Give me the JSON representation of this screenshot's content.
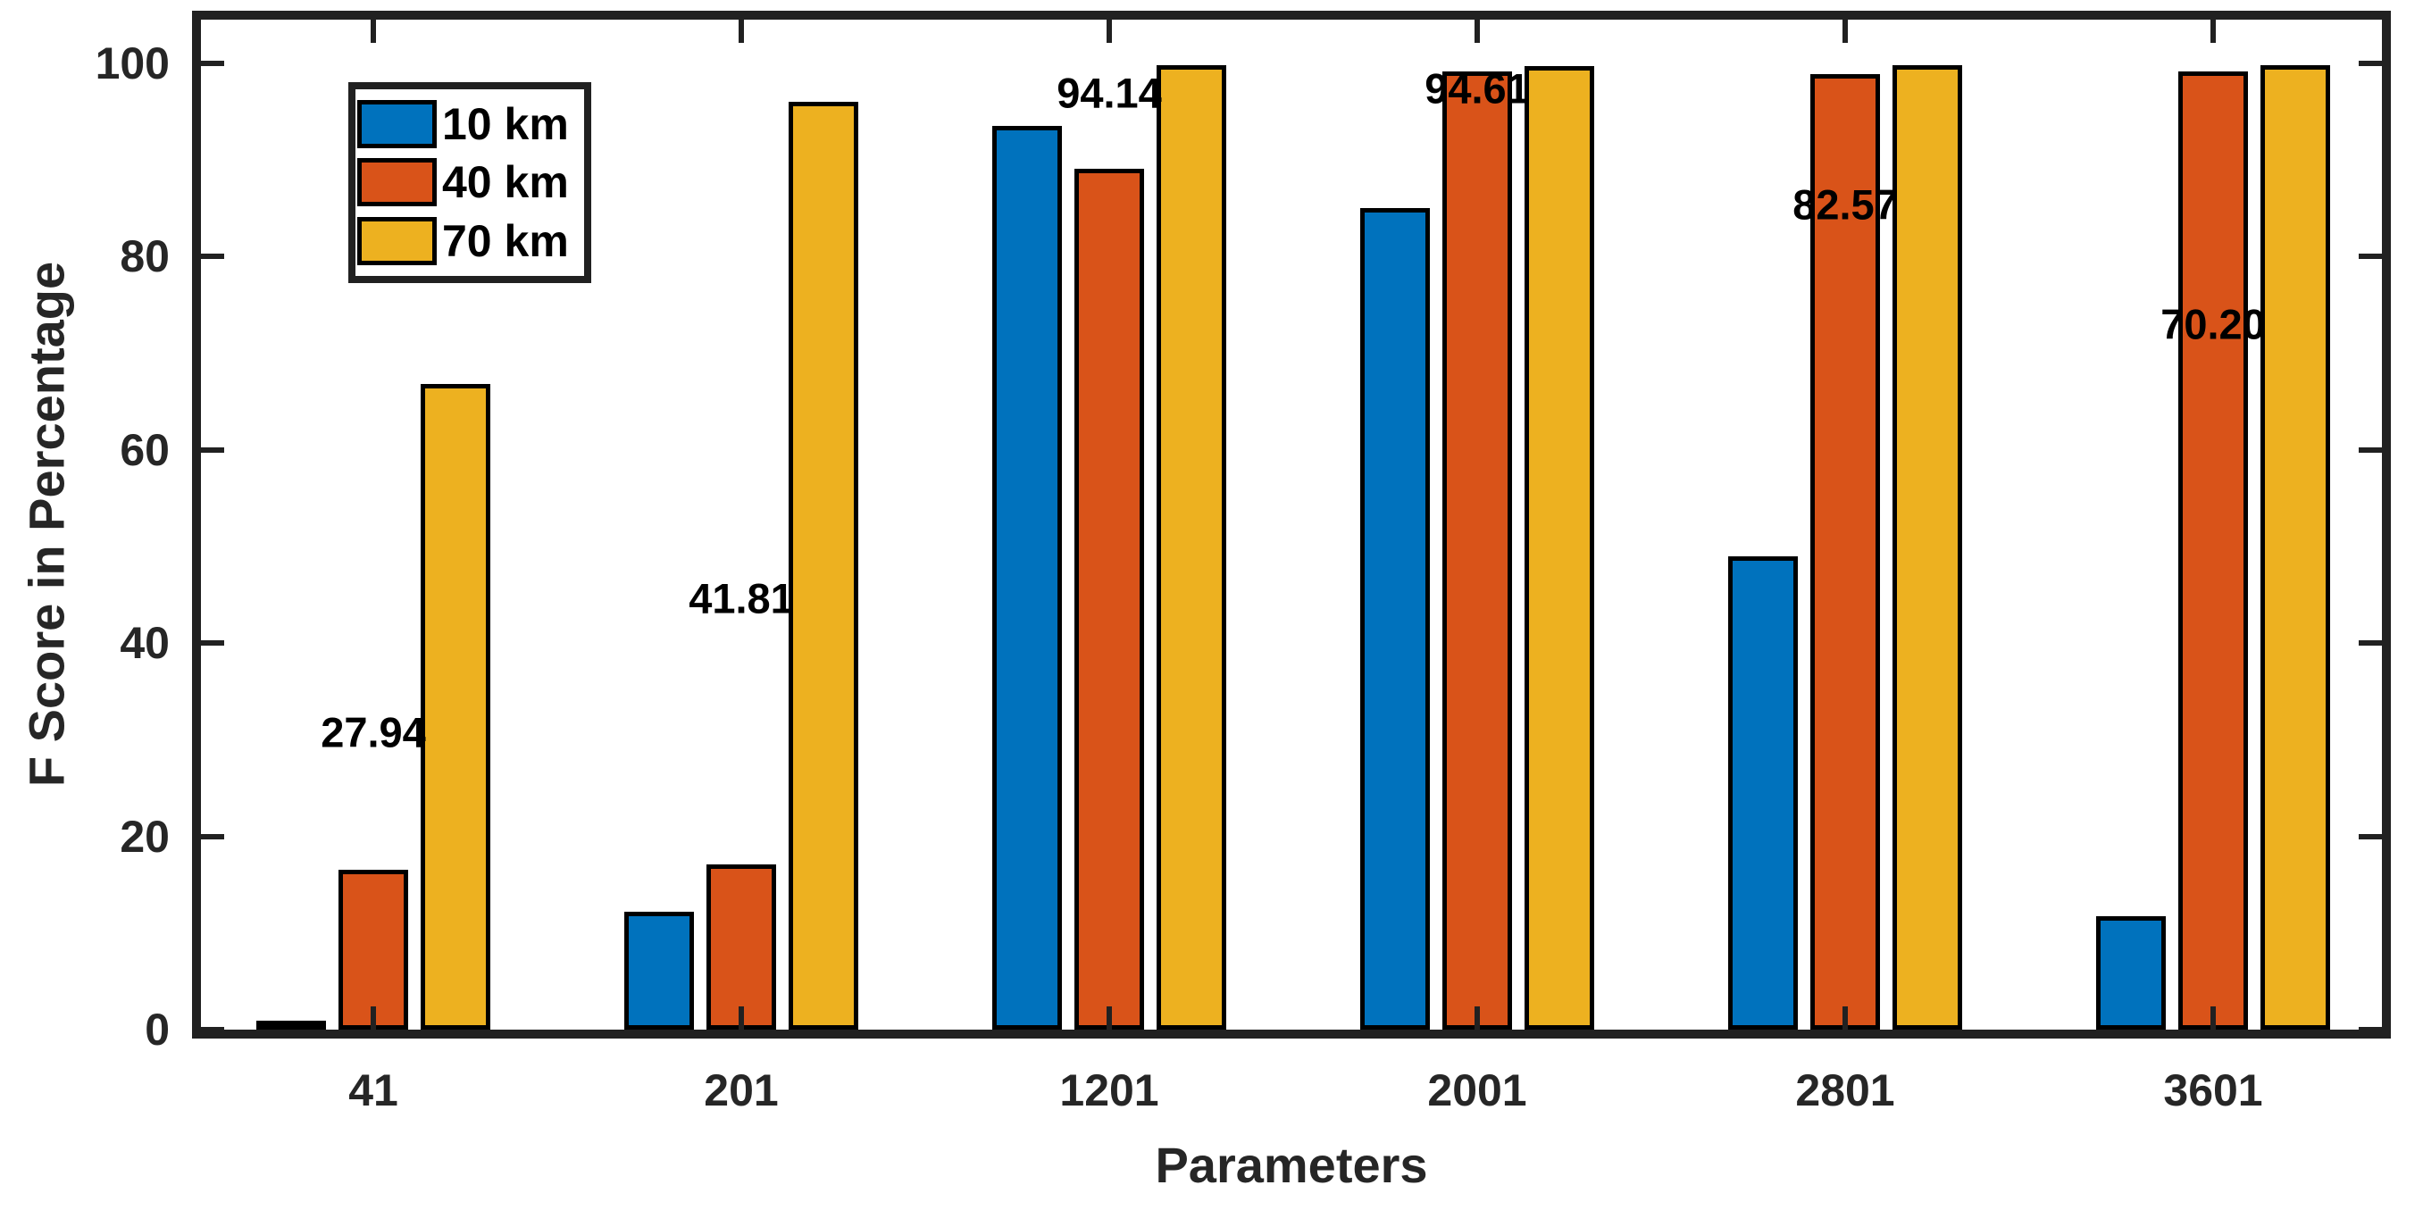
{
  "figure": {
    "background": "#ffffff",
    "axis_color": "#262626",
    "frame_color": "#212121",
    "bar_edge_color": "#000000"
  },
  "chart_data": {
    "type": "bar",
    "title": "",
    "xlabel": "Parameters",
    "ylabel": "F Score in Percentage",
    "categories": [
      "41",
      "201",
      "1201",
      "2001",
      "2801",
      "3601"
    ],
    "series": [
      {
        "name": "10 km",
        "color": "#0072BD",
        "values": [
          0.5,
          12.2,
          93.5,
          85.0,
          49.0,
          11.7
        ]
      },
      {
        "name": "40 km",
        "color": "#D95319",
        "values": [
          16.5,
          17.1,
          89.1,
          99.1,
          98.9,
          99.1
        ]
      },
      {
        "name": "70 km",
        "color": "#EDB120",
        "values": [
          66.8,
          96.0,
          99.8,
          99.7,
          99.8,
          99.8
        ]
      }
    ],
    "group_mean_labels": [
      "27.94",
      "41.81",
      "94.14",
      "94.61",
      "82.57",
      "70.20"
    ],
    "group_means": [
      27.94,
      41.81,
      94.14,
      94.61,
      82.57,
      70.2
    ],
    "yticks": [
      0,
      20,
      40,
      60,
      80,
      100
    ],
    "ylim": [
      0,
      104.5
    ],
    "grid": false,
    "legend_position": "top-left-inside",
    "legend_entries": [
      "10 km",
      "40 km",
      "70 km"
    ]
  }
}
